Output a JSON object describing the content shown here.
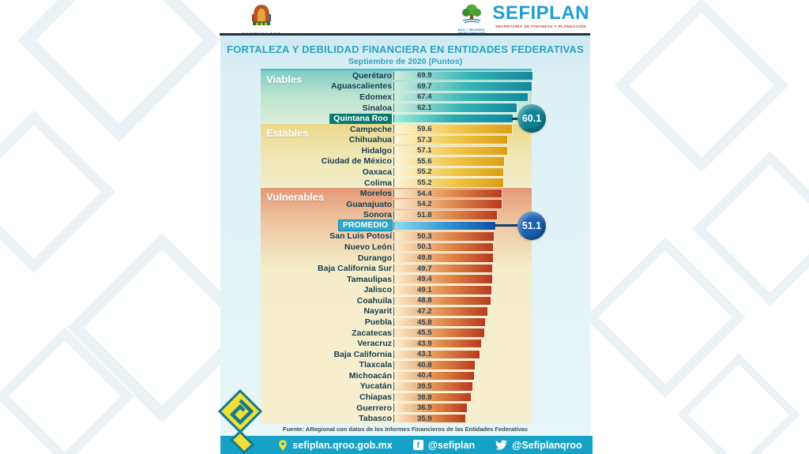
{
  "page": {
    "title": "FORTALEZA Y DEBILIDAD FINANCIERA EN ENTIDADES FEDERATIVAS",
    "subtitle": "Septiembre de 2020 (Puntos)"
  },
  "header": {
    "quintana_roo_logo_text": "QUINTANA ROO",
    "sefiplan": {
      "name": "SEFIPLAN",
      "subtitle": "SECRETARÍA DE FINANZAS Y PLANEACIÓN",
      "tagline_line1": "MÁS Y MEJORES",
      "tagline_line2": "OPORTUNIDADES"
    }
  },
  "chart_data": {
    "type": "bar",
    "orientation": "horizontal",
    "value_unit": "Puntos",
    "xlim": [
      0,
      70
    ],
    "legend_position": "none",
    "grid": false,
    "sections": [
      {
        "id": "viables",
        "label": "Viables"
      },
      {
        "id": "estables",
        "label": "Estables"
      },
      {
        "id": "vulnerables",
        "label": "Vulnerables"
      }
    ],
    "rows": [
      {
        "label": "Querétaro",
        "value": 69.9,
        "section": 0,
        "style": "viable"
      },
      {
        "label": "Aguascalientes",
        "value": 69.7,
        "section": 0,
        "style": "viable"
      },
      {
        "label": "Edomex",
        "value": 67.4,
        "section": 0,
        "style": "viable"
      },
      {
        "label": "Sinaloa",
        "value": 62.1,
        "section": 0,
        "style": "viable"
      },
      {
        "label": "Quintana Roo",
        "value": 60.1,
        "section": 0,
        "style": "qroo",
        "pill": "pill-qroo",
        "hide_value": true,
        "callout": {
          "text": "60.1",
          "color": "teal"
        }
      },
      {
        "label": "Campeche",
        "value": 59.6,
        "section": 1,
        "style": "estable"
      },
      {
        "label": "Chihuahua",
        "value": 57.3,
        "section": 1,
        "style": "estable"
      },
      {
        "label": "Hidalgo",
        "value": 57.1,
        "section": 1,
        "style": "estable"
      },
      {
        "label": "Ciudad de México",
        "value": 55.6,
        "section": 1,
        "style": "estable"
      },
      {
        "label": "Oaxaca",
        "value": 55.2,
        "section": 1,
        "style": "estable"
      },
      {
        "label": "Colima",
        "value": 55.2,
        "section": 1,
        "style": "estable"
      },
      {
        "label": "Morelos",
        "value": 54.4,
        "section": 2,
        "style": "vulnerable"
      },
      {
        "label": "Guanajuato",
        "value": 54.2,
        "section": 2,
        "style": "vulnerable"
      },
      {
        "label": "Sonora",
        "value": 51.8,
        "section": 2,
        "style": "vulnerable"
      },
      {
        "label": "PROMEDIO",
        "value": 51.1,
        "section": 2,
        "style": "promedio",
        "pill": "pill-promedio",
        "hide_value": true,
        "callout": {
          "text": "51.1",
          "color": "blue"
        }
      },
      {
        "label": "San Luis Potosí",
        "value": 50.3,
        "section": 2,
        "style": "vulnerable"
      },
      {
        "label": "Nuevo León",
        "value": 50.1,
        "section": 2,
        "style": "vulnerable"
      },
      {
        "label": "Durango",
        "value": 49.8,
        "section": 2,
        "style": "vulnerable"
      },
      {
        "label": "Baja California Sur",
        "value": 49.7,
        "section": 2,
        "style": "vulnerable"
      },
      {
        "label": "Tamaulipas",
        "value": 49.4,
        "section": 2,
        "style": "vulnerable"
      },
      {
        "label": "Jalisco",
        "value": 49.1,
        "section": 2,
        "style": "vulnerable"
      },
      {
        "label": "Coahuila",
        "value": 48.8,
        "section": 2,
        "style": "vulnerable"
      },
      {
        "label": "Nayarit",
        "value": 47.2,
        "section": 2,
        "style": "vulnerable"
      },
      {
        "label": "Puebla",
        "value": 45.8,
        "section": 2,
        "style": "vulnerable"
      },
      {
        "label": "Zacatecas",
        "value": 45.5,
        "section": 2,
        "style": "vulnerable"
      },
      {
        "label": "Veracruz",
        "value": 43.9,
        "section": 2,
        "style": "vulnerable"
      },
      {
        "label": "Baja California",
        "value": 43.1,
        "section": 2,
        "style": "vulnerable"
      },
      {
        "label": "Tlaxcala",
        "value": 40.8,
        "section": 2,
        "style": "vulnerable"
      },
      {
        "label": "Michoacán",
        "value": 40.4,
        "section": 2,
        "style": "vulnerable"
      },
      {
        "label": "Yucatán",
        "value": 39.5,
        "section": 2,
        "style": "vulnerable"
      },
      {
        "label": "Chiapas",
        "value": 38.8,
        "section": 2,
        "style": "vulnerable"
      },
      {
        "label": "Guerrero",
        "value": 36.9,
        "section": 2,
        "style": "vulnerable"
      },
      {
        "label": "Tabasco",
        "value": 35.9,
        "section": 2,
        "style": "vulnerable"
      }
    ],
    "colors": {
      "viable_bar_end": "#13889f",
      "estable_bar_end": "#dd9d14",
      "vulnerable_bar_end": "#b93a1e",
      "promedio_bar_end": "#134f9e",
      "callout_teal": "#0f8496",
      "callout_blue": "#1a62b4",
      "footer_bar": "#16a2c6",
      "title_text": "#2ba4c2"
    }
  },
  "footer": {
    "source": "Fuente: ARegional con datos de los Informes Financieros de las Entidades Federativas",
    "website": "sefiplan.qroo.gob.mx",
    "facebook": "@sefiplan",
    "twitter": "@Sefiplanqroo"
  }
}
